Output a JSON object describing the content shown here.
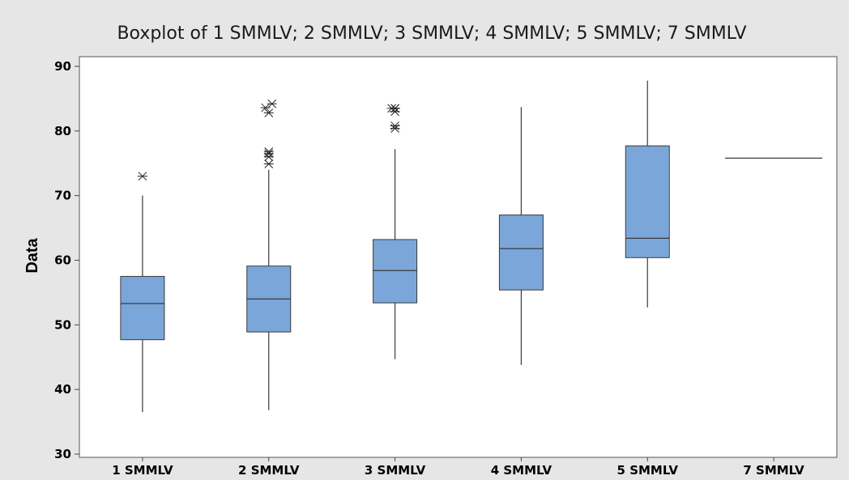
{
  "chart_data": {
    "type": "boxplot",
    "title": "Boxplot of 1 SMMLV; 2 SMMLV; 3 SMMLV; 4 SMMLV; 5 SMMLV; 7 SMMLV",
    "xlabel": "",
    "ylabel": "Data",
    "ylim": [
      29.5,
      91.5
    ],
    "yticks": [
      30,
      40,
      50,
      60,
      70,
      80,
      90
    ],
    "grid": false,
    "colors": {
      "box_fill": "#7ba6da",
      "box_stroke": "#3a3a3a",
      "background": "#e6e6e6",
      "plot_bg": "#ffffff"
    },
    "categories": [
      "1 SMMLV",
      "2 SMMLV",
      "3 SMMLV",
      "4 SMMLV",
      "5 SMMLV",
      "7 SMMLV"
    ],
    "boxes": [
      {
        "category": "1 SMMLV",
        "whisker_low": 36.5,
        "q1": 47.7,
        "median": 53.3,
        "q3": 57.5,
        "whisker_high": 70.0,
        "outliers": [
          73.0
        ]
      },
      {
        "category": "2 SMMLV",
        "whisker_low": 36.8,
        "q1": 48.9,
        "median": 54.0,
        "q3": 59.1,
        "whisker_high": 74.0,
        "outliers": [
          74.9,
          76.0,
          76.5,
          76.8,
          82.8,
          83.6,
          84.2
        ]
      },
      {
        "category": "3 SMMLV",
        "whisker_low": 44.7,
        "q1": 53.4,
        "median": 58.4,
        "q3": 63.2,
        "whisker_high": 77.2,
        "outliers": [
          80.4,
          80.8,
          83.0,
          83.5,
          83.5,
          83.5
        ]
      },
      {
        "category": "4 SMMLV",
        "whisker_low": 43.8,
        "q1": 55.4,
        "median": 61.8,
        "q3": 67.0,
        "whisker_high": 83.7,
        "outliers": []
      },
      {
        "category": "5 SMMLV",
        "whisker_low": 52.7,
        "q1": 60.4,
        "median": 63.4,
        "q3": 77.7,
        "whisker_high": 87.8,
        "outliers": []
      },
      {
        "category": "7 SMMLV",
        "whisker_low": 75.8,
        "q1": 75.8,
        "median": 75.8,
        "q3": 75.8,
        "whisker_high": 75.8,
        "outliers": []
      }
    ]
  }
}
